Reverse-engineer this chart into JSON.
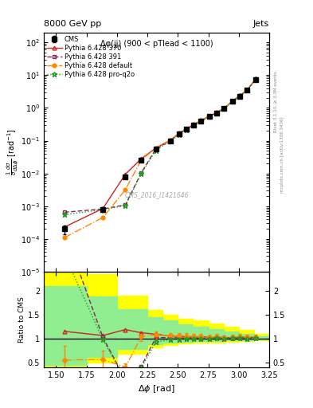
{
  "title_left": "8000 GeV pp",
  "title_right": "Jets",
  "annotation": "Δφ(jj) (900 < pTlead < 1100)",
  "cms_label": "CMS_2016_I1421646",
  "ylabel_main": "$\\frac{1}{\\sigma}\\frac{d\\sigma}{d\\Delta\\phi}$ [rad$^{-1}$]",
  "ylabel_ratio": "Ratio to CMS",
  "xlabel": "$\\Delta\\phi$ [rad]",
  "right_label1": "Rivet 3.1.10, ≥ 3.3M events",
  "right_label2": "mcplots.cern.ch [arXiv:1306.3436]",
  "xmin": 1.4,
  "xmax": 3.25,
  "cms_x": [
    1.57,
    1.885,
    2.07,
    2.2,
    2.32,
    2.44,
    2.51,
    2.57,
    2.63,
    2.69,
    2.76,
    2.82,
    2.88,
    2.95,
    3.01,
    3.07,
    3.14
  ],
  "cms_y": [
    0.0002,
    0.0008,
    0.008,
    0.025,
    0.055,
    0.1,
    0.16,
    0.22,
    0.3,
    0.4,
    0.55,
    0.7,
    0.95,
    1.6,
    2.3,
    3.5,
    7.5
  ],
  "cms_yerr": [
    6e-05,
    0.00015,
    0.0007,
    0.0025,
    0.004,
    0.006,
    0.008,
    0.012,
    0.015,
    0.02,
    0.03,
    0.04,
    0.05,
    0.08,
    0.12,
    0.2,
    0.4
  ],
  "py370_x": [
    1.57,
    1.885,
    2.07,
    2.2,
    2.32,
    2.44,
    2.51,
    2.57,
    2.63,
    2.69,
    2.76,
    2.82,
    2.88,
    2.95,
    3.01,
    3.07,
    3.14
  ],
  "py370_y": [
    0.00023,
    0.00085,
    0.0095,
    0.028,
    0.06,
    0.105,
    0.168,
    0.228,
    0.308,
    0.415,
    0.565,
    0.725,
    0.965,
    1.63,
    2.38,
    3.58,
    7.7
  ],
  "py391_x": [
    1.57,
    1.885,
    2.07,
    2.2,
    2.32,
    2.44,
    2.51,
    2.57,
    2.63,
    2.69,
    2.76,
    2.82,
    2.88,
    2.95,
    3.01,
    3.07,
    3.14
  ],
  "py391_y": [
    0.00065,
    0.00082,
    0.0011,
    0.0105,
    0.056,
    0.102,
    0.162,
    0.222,
    0.302,
    0.402,
    0.552,
    0.712,
    0.958,
    1.62,
    2.34,
    3.54,
    7.6
  ],
  "pydef_x": [
    1.57,
    1.885,
    2.07,
    2.2,
    2.32,
    2.44,
    2.51,
    2.57,
    2.63,
    2.69,
    2.76,
    2.82,
    2.88,
    2.95,
    3.01,
    3.07,
    3.14
  ],
  "pydef_y": [
    0.00011,
    0.00045,
    0.0032,
    0.026,
    0.059,
    0.106,
    0.169,
    0.232,
    0.312,
    0.418,
    0.568,
    0.728,
    0.968,
    1.64,
    2.39,
    3.59,
    7.72
  ],
  "pyq2o_x": [
    1.57,
    1.885,
    2.07,
    2.2,
    2.32,
    2.44,
    2.51,
    2.57,
    2.63,
    2.69,
    2.76,
    2.82,
    2.88,
    2.95,
    3.01,
    3.07,
    3.14
  ],
  "pyq2o_y": [
    0.00055,
    0.00078,
    0.00105,
    0.0098,
    0.051,
    0.098,
    0.157,
    0.218,
    0.298,
    0.398,
    0.548,
    0.708,
    0.952,
    1.61,
    2.33,
    3.51,
    7.55
  ],
  "color_py370": "#cc2222",
  "color_py391": "#882255",
  "color_pydef": "#ff8800",
  "color_pyq2o": "#229922",
  "band_yellow_x": [
    1.4,
    1.75,
    2.0,
    2.25,
    2.375,
    2.5,
    2.625,
    2.75,
    2.875,
    3.0,
    3.125,
    3.25
  ],
  "band_yellow_lo": [
    0.35,
    0.5,
    0.68,
    0.82,
    0.87,
    0.9,
    0.91,
    0.92,
    0.93,
    0.95,
    0.97,
    0.97
  ],
  "band_yellow_hi": [
    2.6,
    2.35,
    1.9,
    1.6,
    1.5,
    1.42,
    1.38,
    1.32,
    1.25,
    1.18,
    1.1,
    1.08
  ],
  "band_green_x": [
    1.4,
    1.75,
    2.0,
    2.25,
    2.375,
    2.5,
    2.625,
    2.75,
    2.875,
    3.0,
    3.125,
    3.25
  ],
  "band_green_lo": [
    0.45,
    0.62,
    0.78,
    0.88,
    0.91,
    0.93,
    0.94,
    0.95,
    0.96,
    0.97,
    0.98,
    0.98
  ],
  "band_green_hi": [
    2.1,
    1.88,
    1.62,
    1.45,
    1.38,
    1.3,
    1.25,
    1.2,
    1.15,
    1.1,
    1.05,
    1.03
  ]
}
